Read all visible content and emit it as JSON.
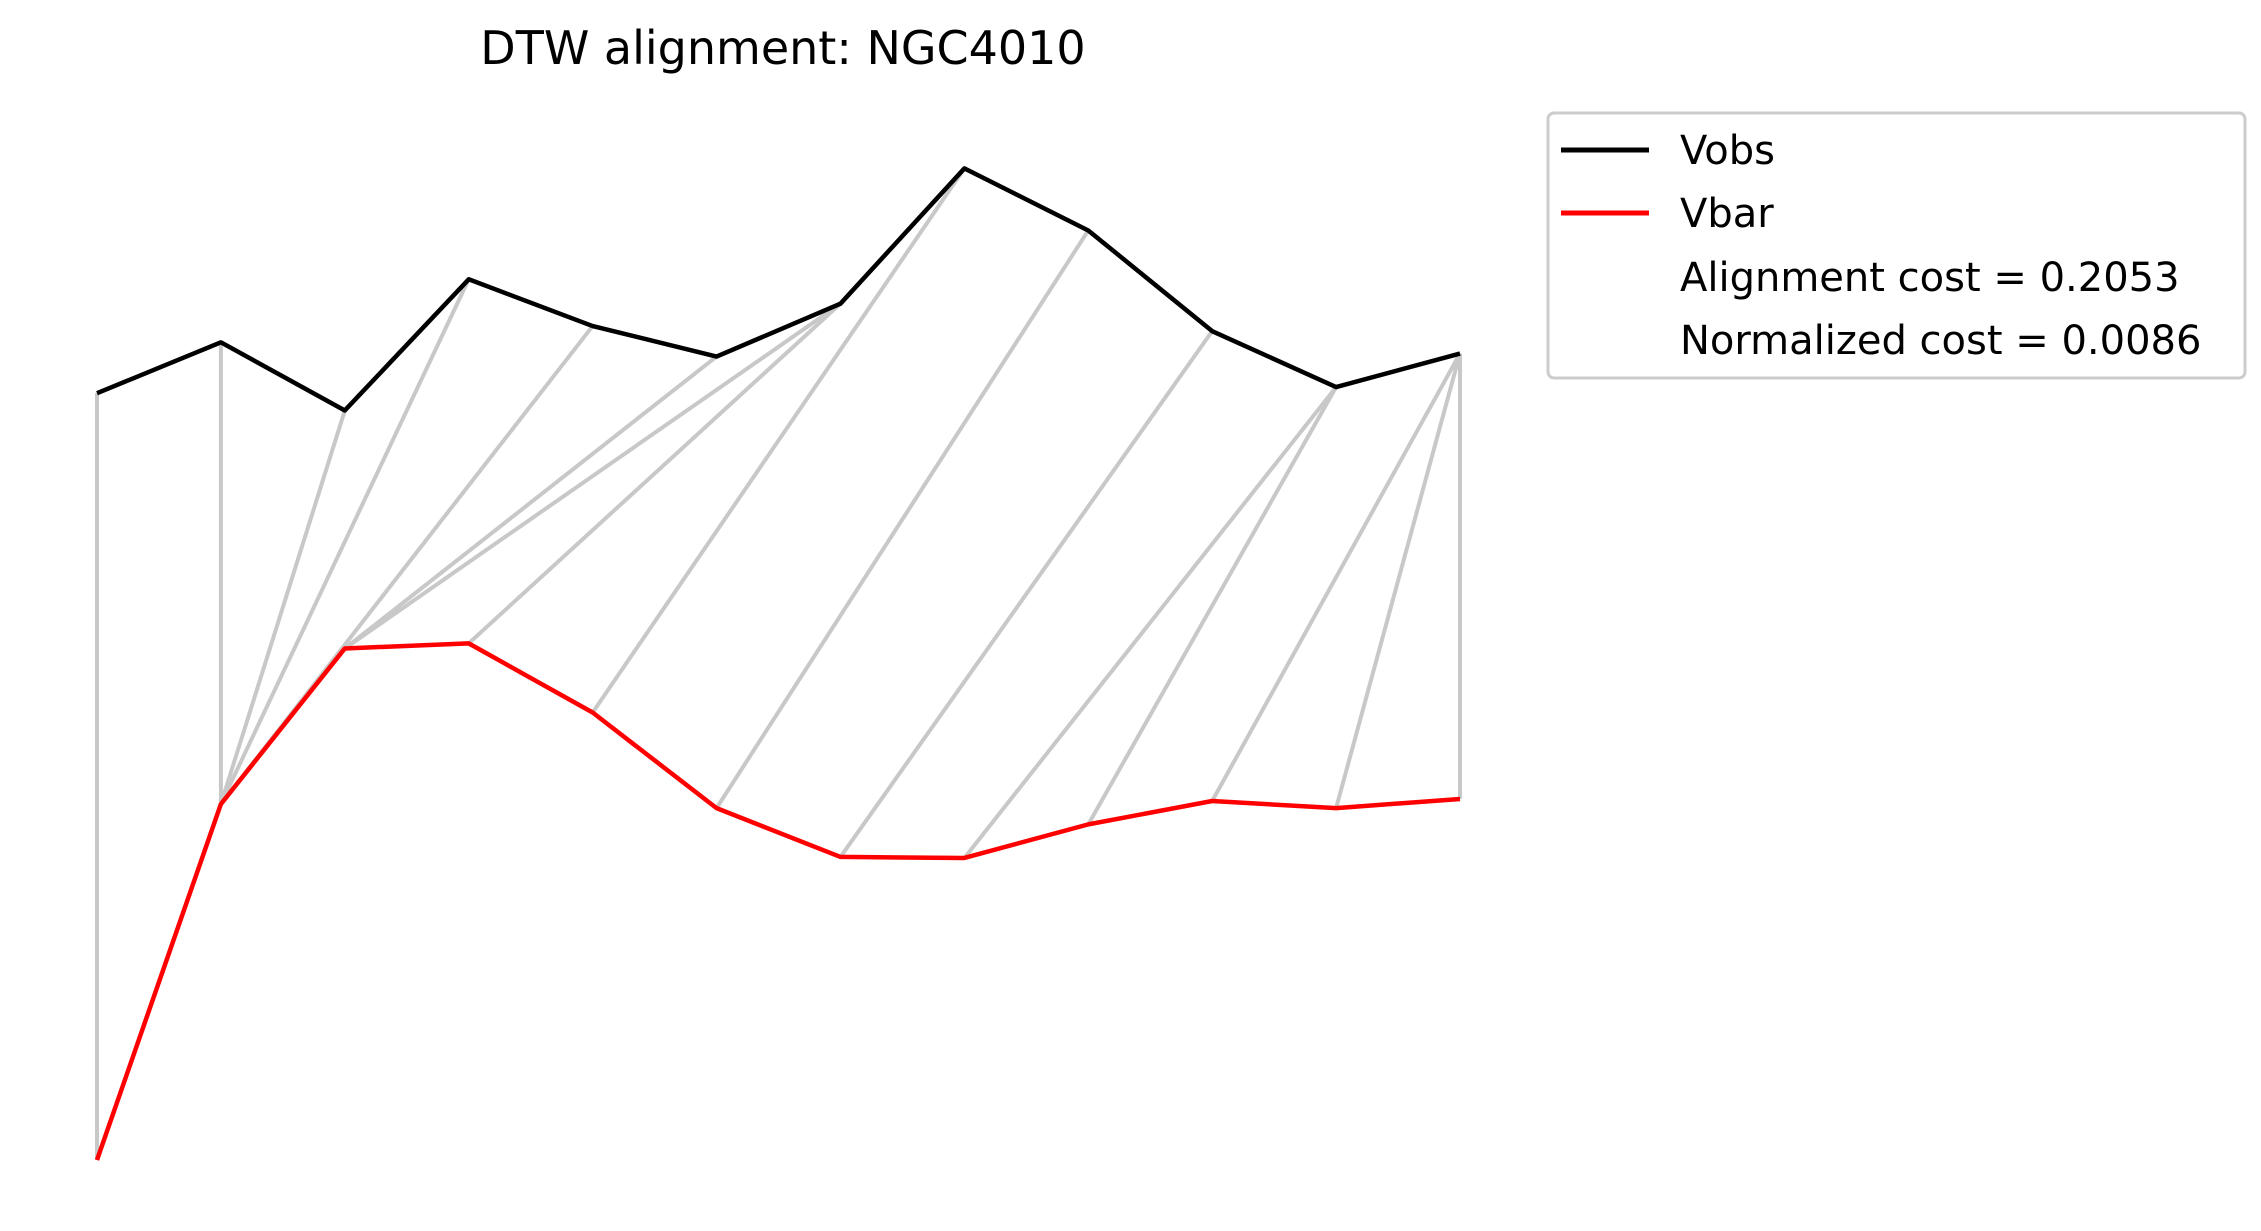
{
  "chart_data": {
    "type": "line",
    "title": "DTW alignment: NGC4010",
    "xlabel": "",
    "ylabel": "",
    "axes_visible": false,
    "grid": false,
    "legend_position": "upper-right-outside",
    "x": [
      0,
      1,
      2,
      3,
      4,
      5,
      6,
      7,
      8,
      9,
      10,
      11
    ],
    "ylim": [
      0,
      1
    ],
    "series": [
      {
        "name": "Vobs",
        "color": "#000000",
        "values": [
          0.754,
          0.804,
          0.737,
          0.866,
          0.82,
          0.79,
          0.842,
          0.975,
          0.914,
          0.815,
          0.76,
          0.793
        ]
      },
      {
        "name": "Vbar",
        "color": "#ff0000",
        "values": [
          0.0,
          0.35,
          0.503,
          0.508,
          0.44,
          0.346,
          0.298,
          0.297,
          0.33,
          0.353,
          0.346,
          0.355
        ]
      }
    ],
    "alignment_color": "#c8c8c8",
    "alignment_pairs": [
      [
        0,
        0
      ],
      [
        1,
        1
      ],
      [
        2,
        1
      ],
      [
        3,
        1
      ],
      [
        4,
        1
      ],
      [
        5,
        2
      ],
      [
        6,
        2
      ],
      [
        6,
        3
      ],
      [
        7,
        4
      ],
      [
        8,
        5
      ],
      [
        9,
        6
      ],
      [
        10,
        7
      ],
      [
        10,
        8
      ],
      [
        11,
        9
      ],
      [
        11,
        10
      ],
      [
        11,
        11
      ]
    ],
    "annotations": [
      "Alignment cost = 0.2053",
      "Normalized cost = 0.0086"
    ]
  }
}
